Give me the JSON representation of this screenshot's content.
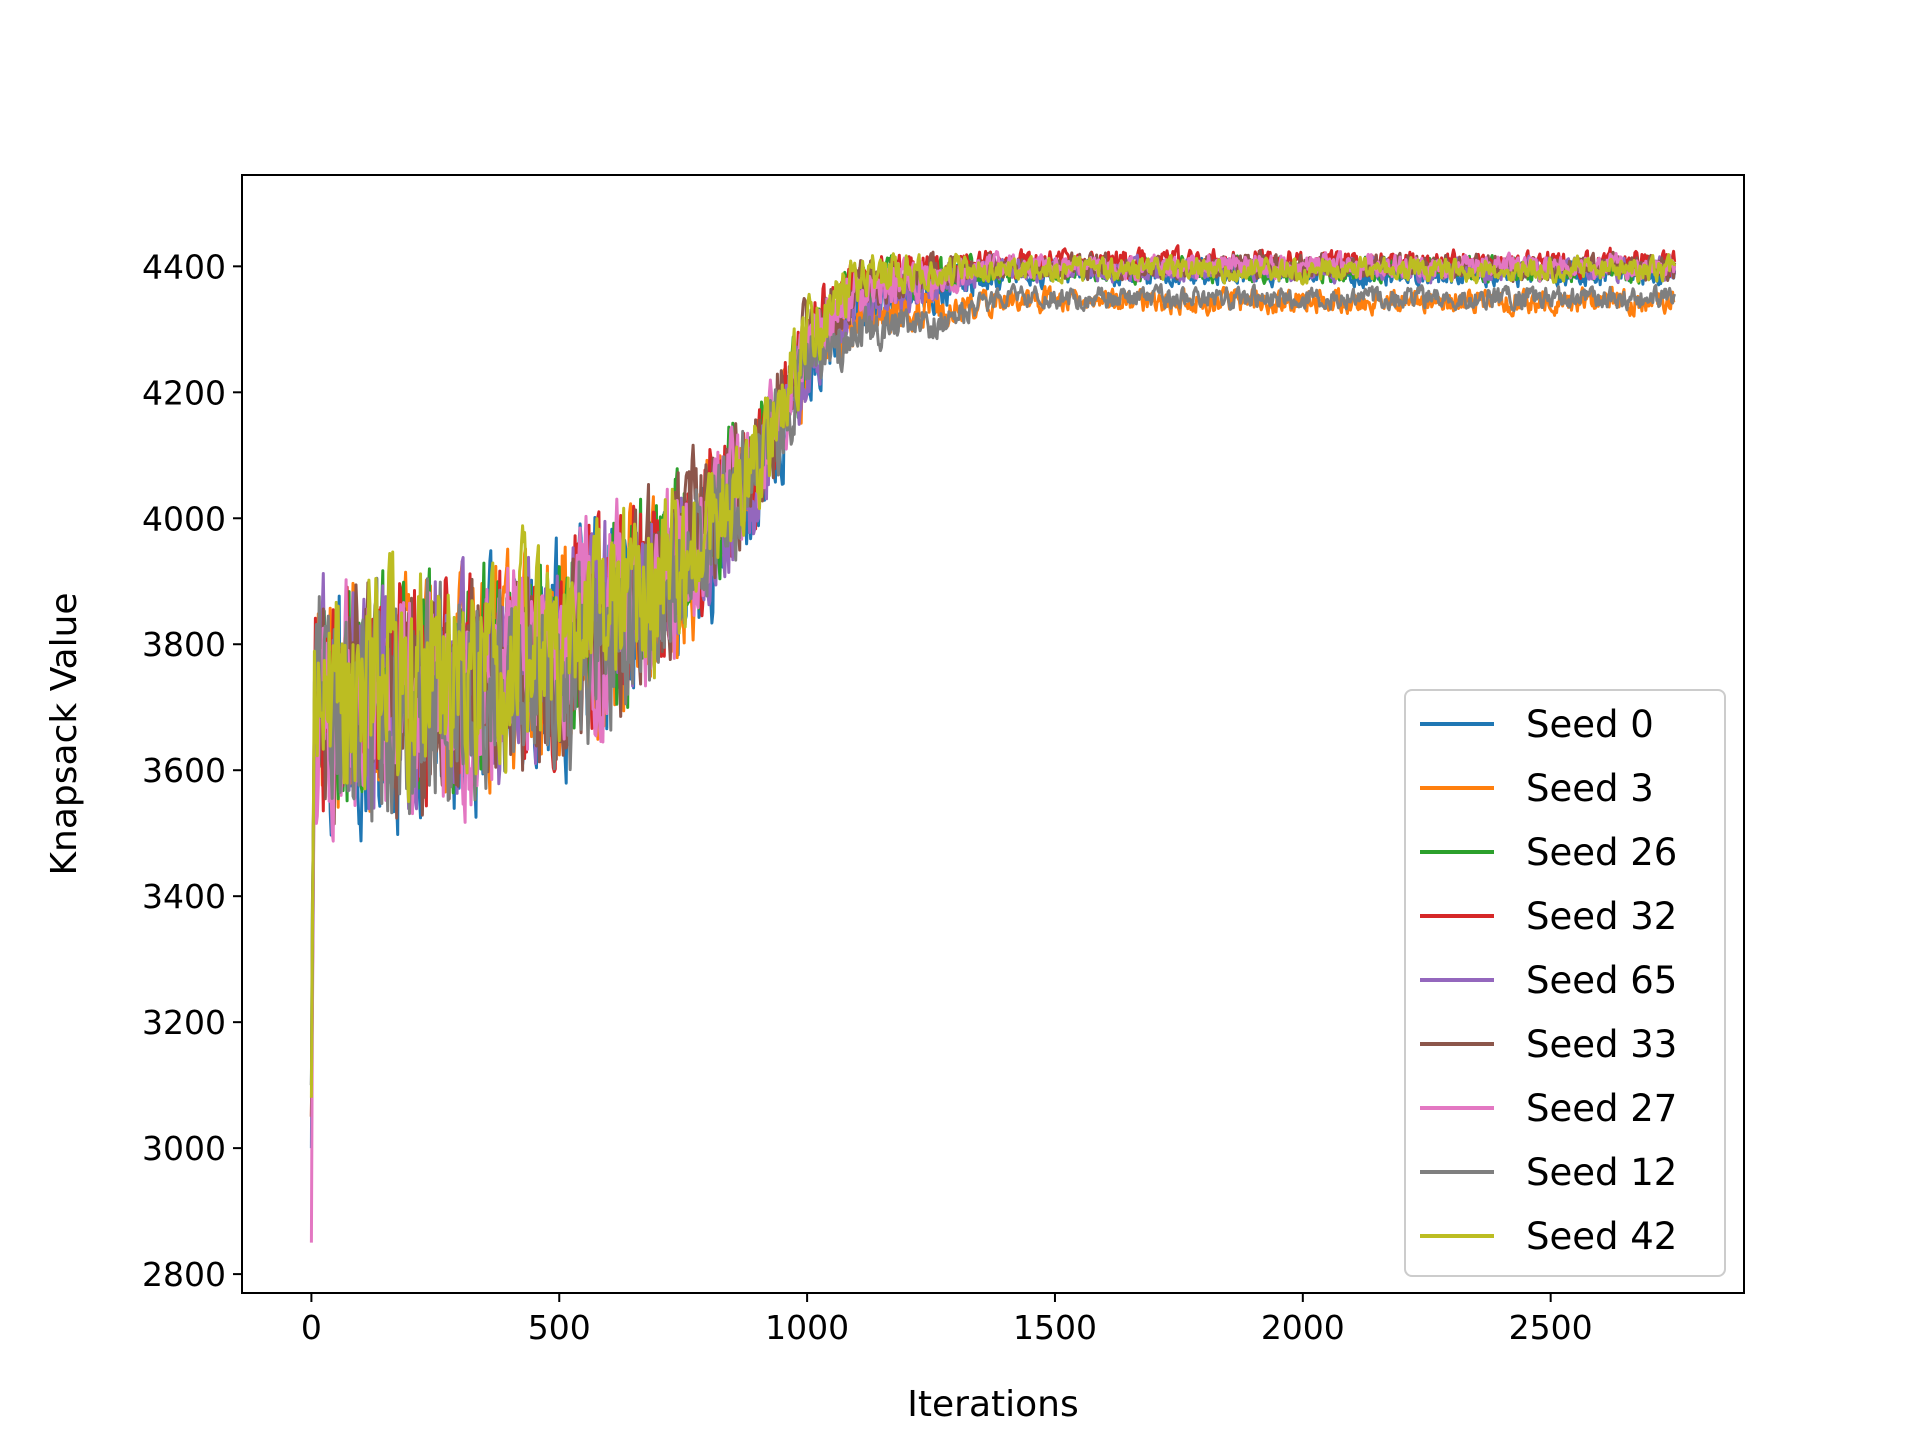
{
  "chart_data": {
    "type": "line",
    "title": "",
    "xlabel": "Iterations",
    "ylabel": "Knapsack Value",
    "xlim": [
      -140,
      2890
    ],
    "ylim": [
      2770,
      4545
    ],
    "xticks": [
      "0",
      "500",
      "1000",
      "1500",
      "2000",
      "2500"
    ],
    "yticks": [
      "2800",
      "3000",
      "3200",
      "3400",
      "3600",
      "3800",
      "4000",
      "4200",
      "4400"
    ],
    "grid": false,
    "legend_position": "lower-right",
    "x_range": [
      0,
      2750
    ],
    "series": [
      {
        "name": "Seed 0",
        "color": "#1f77b4",
        "trend": [
          [
            0,
            3000
          ],
          [
            5,
            3700
          ],
          [
            100,
            3680
          ],
          [
            300,
            3720
          ],
          [
            500,
            3780
          ],
          [
            700,
            3870
          ],
          [
            900,
            4050
          ],
          [
            1000,
            4240
          ],
          [
            1100,
            4340
          ],
          [
            1300,
            4370
          ],
          [
            1400,
            4390
          ],
          [
            2750,
            4390
          ]
        ],
        "noise": [
          [
            0,
            260
          ],
          [
            600,
            240
          ],
          [
            900,
            130
          ],
          [
            1100,
            70
          ],
          [
            1400,
            30
          ],
          [
            2750,
            30
          ]
        ]
      },
      {
        "name": "Seed 3",
        "color": "#ff7f0e",
        "trend": [
          [
            0,
            3050
          ],
          [
            5,
            3720
          ],
          [
            300,
            3730
          ],
          [
            500,
            3790
          ],
          [
            700,
            3880
          ],
          [
            900,
            4070
          ],
          [
            1000,
            4250
          ],
          [
            1100,
            4320
          ],
          [
            1300,
            4340
          ],
          [
            1400,
            4345
          ],
          [
            2750,
            4345
          ]
        ],
        "noise": [
          [
            0,
            250
          ],
          [
            600,
            240
          ],
          [
            900,
            130
          ],
          [
            1100,
            60
          ],
          [
            1400,
            28
          ],
          [
            2750,
            28
          ]
        ]
      },
      {
        "name": "Seed 26",
        "color": "#2ca02c",
        "trend": [
          [
            0,
            3100
          ],
          [
            5,
            3730
          ],
          [
            300,
            3740
          ],
          [
            500,
            3800
          ],
          [
            700,
            3900
          ],
          [
            900,
            4090
          ],
          [
            1000,
            4270
          ],
          [
            1100,
            4370
          ],
          [
            1300,
            4390
          ],
          [
            1400,
            4395
          ],
          [
            2750,
            4395
          ]
        ],
        "noise": [
          [
            0,
            250
          ],
          [
            600,
            240
          ],
          [
            900,
            130
          ],
          [
            1100,
            60
          ],
          [
            1400,
            28
          ],
          [
            2750,
            28
          ]
        ]
      },
      {
        "name": "Seed 32",
        "color": "#d62728",
        "trend": [
          [
            0,
            3050
          ],
          [
            5,
            3700
          ],
          [
            300,
            3730
          ],
          [
            500,
            3790
          ],
          [
            700,
            3900
          ],
          [
            900,
            4090
          ],
          [
            1000,
            4280
          ],
          [
            1100,
            4370
          ],
          [
            1300,
            4400
          ],
          [
            1400,
            4405
          ],
          [
            2750,
            4405
          ]
        ],
        "noise": [
          [
            0,
            260
          ],
          [
            600,
            240
          ],
          [
            900,
            130
          ],
          [
            1100,
            60
          ],
          [
            1400,
            30
          ],
          [
            2750,
            30
          ]
        ]
      },
      {
        "name": "Seed 65",
        "color": "#9467bd",
        "trend": [
          [
            0,
            3100
          ],
          [
            5,
            3710
          ],
          [
            300,
            3730
          ],
          [
            500,
            3790
          ],
          [
            700,
            3880
          ],
          [
            900,
            4060
          ],
          [
            1000,
            4250
          ],
          [
            1100,
            4340
          ],
          [
            1300,
            4380
          ],
          [
            1400,
            4395
          ],
          [
            2750,
            4395
          ]
        ],
        "noise": [
          [
            0,
            250
          ],
          [
            600,
            240
          ],
          [
            900,
            130
          ],
          [
            1100,
            60
          ],
          [
            1400,
            28
          ],
          [
            2750,
            28
          ]
        ]
      },
      {
        "name": "Seed 33",
        "color": "#8c564b",
        "trend": [
          [
            0,
            3050
          ],
          [
            5,
            3690
          ],
          [
            300,
            3720
          ],
          [
            500,
            3790
          ],
          [
            700,
            3890
          ],
          [
            900,
            4090
          ],
          [
            1000,
            4280
          ],
          [
            1100,
            4370
          ],
          [
            1300,
            4395
          ],
          [
            1400,
            4400
          ],
          [
            2750,
            4400
          ]
        ],
        "noise": [
          [
            0,
            270
          ],
          [
            600,
            240
          ],
          [
            900,
            130
          ],
          [
            1100,
            60
          ],
          [
            1400,
            30
          ],
          [
            2750,
            30
          ]
        ]
      },
      {
        "name": "Seed 27",
        "color": "#e377c2",
        "trend": [
          [
            0,
            2850
          ],
          [
            5,
            3700
          ],
          [
            300,
            3730
          ],
          [
            500,
            3780
          ],
          [
            700,
            3880
          ],
          [
            900,
            4080
          ],
          [
            1000,
            4270
          ],
          [
            1100,
            4360
          ],
          [
            1300,
            4390
          ],
          [
            1400,
            4400
          ],
          [
            2750,
            4400
          ]
        ],
        "noise": [
          [
            0,
            270
          ],
          [
            600,
            240
          ],
          [
            900,
            130
          ],
          [
            1100,
            60
          ],
          [
            1400,
            28
          ],
          [
            2750,
            28
          ]
        ]
      },
      {
        "name": "Seed 12",
        "color": "#7f7f7f",
        "trend": [
          [
            0,
            3100
          ],
          [
            5,
            3690
          ],
          [
            300,
            3700
          ],
          [
            500,
            3760
          ],
          [
            700,
            3850
          ],
          [
            900,
            4070
          ],
          [
            1000,
            4240
          ],
          [
            1100,
            4300
          ],
          [
            1250,
            4310
          ],
          [
            1400,
            4350
          ],
          [
            2750,
            4350
          ]
        ],
        "noise": [
          [
            0,
            260
          ],
          [
            600,
            240
          ],
          [
            900,
            130
          ],
          [
            1100,
            50
          ],
          [
            1400,
            25
          ],
          [
            2750,
            25
          ]
        ]
      },
      {
        "name": "Seed 42",
        "color": "#bcbd22",
        "trend": [
          [
            0,
            3080
          ],
          [
            5,
            3730
          ],
          [
            300,
            3740
          ],
          [
            500,
            3790
          ],
          [
            700,
            3890
          ],
          [
            900,
            4090
          ],
          [
            1000,
            4280
          ],
          [
            1100,
            4380
          ],
          [
            1300,
            4395
          ],
          [
            1400,
            4395
          ],
          [
            2750,
            4395
          ]
        ],
        "noise": [
          [
            0,
            270
          ],
          [
            600,
            230
          ],
          [
            900,
            120
          ],
          [
            1100,
            55
          ],
          [
            1400,
            28
          ],
          [
            2750,
            28
          ]
        ]
      }
    ]
  }
}
